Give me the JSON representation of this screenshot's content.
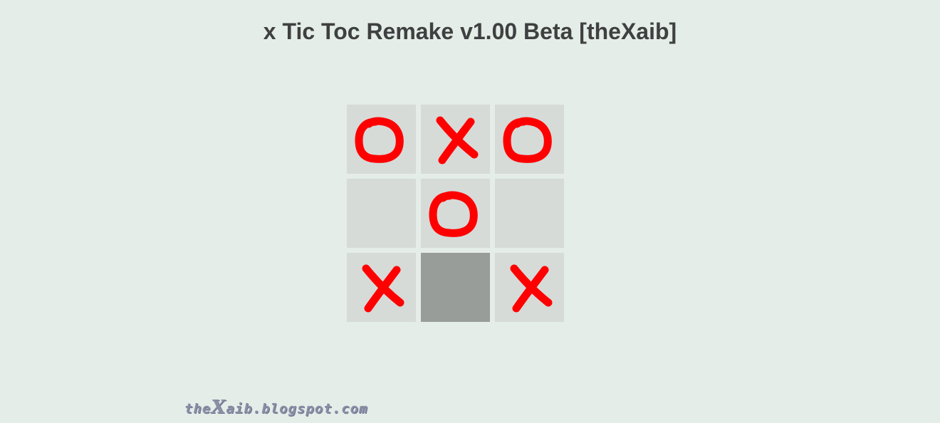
{
  "window": {
    "title": "x Tic Toc Remake v1.00 Beta [theXaib]"
  },
  "board": {
    "rows": 3,
    "cols": 3,
    "cells": [
      {
        "mark": "O",
        "state": "filled"
      },
      {
        "mark": "X",
        "state": "filled"
      },
      {
        "mark": "O",
        "state": "filled"
      },
      {
        "mark": "",
        "state": "empty"
      },
      {
        "mark": "O",
        "state": "filled"
      },
      {
        "mark": "",
        "state": "empty"
      },
      {
        "mark": "X",
        "state": "filled"
      },
      {
        "mark": "",
        "state": "hover"
      },
      {
        "mark": "X",
        "state": "filled"
      }
    ]
  },
  "footer": {
    "prefix": "the",
    "logo_letter": "X",
    "suffix": "aib.blogspot.com"
  },
  "colors": {
    "background": "#e4ede7",
    "cell": "#d6dbd8",
    "cell_hover": "#999d99",
    "mark": "#ff0000",
    "title_text": "#3f4041",
    "footer_text": "#8a8fa6"
  }
}
